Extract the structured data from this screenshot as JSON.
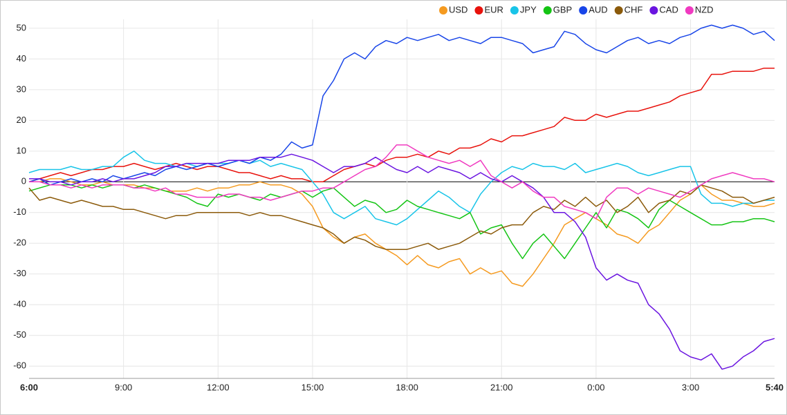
{
  "chart_data": {
    "type": "line",
    "categories": [
      "6:00",
      null,
      null,
      null,
      null,
      null,
      null,
      null,
      null,
      "9:00",
      null,
      null,
      null,
      null,
      null,
      null,
      null,
      null,
      "12:00",
      null,
      null,
      null,
      null,
      null,
      null,
      null,
      null,
      "15:00",
      null,
      null,
      null,
      null,
      null,
      null,
      null,
      null,
      "18:00",
      null,
      null,
      null,
      null,
      null,
      null,
      null,
      null,
      "21:00",
      null,
      null,
      null,
      null,
      null,
      null,
      null,
      null,
      "0:00",
      null,
      null,
      null,
      null,
      null,
      null,
      null,
      null,
      "3:00",
      null,
      null,
      null,
      null,
      null,
      null,
      null,
      "5:40"
    ],
    "ylim": [
      -64,
      52
    ],
    "yticks": [
      -60,
      -50,
      -40,
      -30,
      -20,
      -10,
      0,
      10,
      20,
      30,
      40,
      50
    ],
    "grid": true,
    "legend": "top-right",
    "series": [
      {
        "name": "USD",
        "color": "#f59a1f",
        "values": [
          0,
          0,
          1,
          1,
          0,
          -1,
          -1,
          0,
          -1,
          -1,
          -1,
          -2,
          -2,
          -3,
          -3,
          -3,
          -2,
          -3,
          -2,
          -2,
          -1,
          -1,
          0,
          -1,
          -1,
          -2,
          -4,
          -8,
          -15,
          -18,
          -20,
          -18,
          -17,
          -20,
          -22,
          -24,
          -27,
          -24,
          -27,
          -28,
          -26,
          -25,
          -30,
          -28,
          -30,
          -29,
          -33,
          -34,
          -30,
          -25,
          -20,
          -14,
          -12,
          -10,
          -12,
          -14,
          -17,
          -18,
          -20,
          -16,
          -14,
          -10,
          -6,
          -4,
          -1,
          -4,
          -6,
          -6,
          -7,
          -8,
          -8,
          -7
        ]
      },
      {
        "name": "EUR",
        "color": "#e8120c",
        "values": [
          0,
          1,
          2,
          3,
          2,
          3,
          4,
          4,
          5,
          5,
          6,
          5,
          4,
          5,
          6,
          5,
          4,
          5,
          5,
          4,
          3,
          3,
          2,
          1,
          2,
          1,
          1,
          0,
          0,
          2,
          4,
          5,
          6,
          5,
          7,
          8,
          8,
          9,
          8,
          10,
          9,
          11,
          11,
          12,
          14,
          13,
          15,
          15,
          16,
          17,
          18,
          21,
          20,
          20,
          22,
          21,
          22,
          23,
          23,
          24,
          25,
          26,
          28,
          29,
          30,
          35,
          35,
          36,
          36,
          36,
          37,
          37
        ]
      },
      {
        "name": "JPY",
        "color": "#18c4e8",
        "values": [
          3,
          4,
          4,
          4,
          5,
          4,
          4,
          5,
          5,
          8,
          10,
          7,
          6,
          6,
          5,
          6,
          5,
          6,
          6,
          6,
          7,
          6,
          7,
          5,
          6,
          5,
          4,
          0,
          -4,
          -10,
          -12,
          -10,
          -8,
          -12,
          -13,
          -14,
          -12,
          -9,
          -6,
          -3,
          -5,
          -8,
          -10,
          -4,
          0,
          3,
          5,
          4,
          6,
          5,
          5,
          4,
          6,
          3,
          4,
          5,
          6,
          5,
          3,
          2,
          3,
          4,
          5,
          5,
          -4,
          -7,
          -7,
          -8,
          -7,
          -7,
          -6,
          -6
        ]
      },
      {
        "name": "GBP",
        "color": "#14c414",
        "values": [
          -3,
          -2,
          -1,
          -1,
          -1,
          -2,
          -1,
          -2,
          -1,
          -1,
          -2,
          -1,
          -2,
          -3,
          -4,
          -5,
          -7,
          -8,
          -4,
          -5,
          -4,
          -5,
          -6,
          -4,
          -5,
          -4,
          -3,
          -5,
          -3,
          -2,
          -5,
          -8,
          -6,
          -7,
          -10,
          -9,
          -6,
          -8,
          -9,
          -10,
          -11,
          -12,
          -10,
          -17,
          -15,
          -14,
          -20,
          -25,
          -20,
          -17,
          -21,
          -25,
          -20,
          -15,
          -10,
          -15,
          -9,
          -10,
          -12,
          -15,
          -9,
          -6,
          -8,
          -10,
          -12,
          -14,
          -14,
          -13,
          -13,
          -12,
          -12,
          -13
        ]
      },
      {
        "name": "AUD",
        "color": "#1845e8",
        "values": [
          0,
          1,
          -1,
          0,
          1,
          0,
          1,
          0,
          2,
          1,
          2,
          3,
          2,
          4,
          5,
          4,
          5,
          6,
          5,
          6,
          7,
          6,
          8,
          7,
          9,
          13,
          11,
          12,
          28,
          33,
          40,
          42,
          40,
          44,
          46,
          45,
          47,
          46,
          47,
          48,
          46,
          47,
          46,
          45,
          47,
          47,
          46,
          45,
          42,
          43,
          44,
          49,
          48,
          45,
          43,
          42,
          44,
          46,
          47,
          45,
          46,
          45,
          47,
          48,
          50,
          51,
          50,
          51,
          50,
          48,
          49,
          46
        ]
      },
      {
        "name": "CHF",
        "color": "#8b5a0a",
        "values": [
          -2,
          -6,
          -5,
          -6,
          -7,
          -6,
          -7,
          -8,
          -8,
          -9,
          -9,
          -10,
          -11,
          -12,
          -11,
          -11,
          -10,
          -10,
          -10,
          -10,
          -10,
          -11,
          -10,
          -11,
          -11,
          -12,
          -13,
          -14,
          -15,
          -17,
          -20,
          -18,
          -19,
          -21,
          -22,
          -22,
          -22,
          -21,
          -20,
          -22,
          -21,
          -20,
          -18,
          -16,
          -17,
          -15,
          -14,
          -14,
          -10,
          -8,
          -9,
          -6,
          -8,
          -5,
          -8,
          -6,
          -10,
          -8,
          -5,
          -10,
          -7,
          -6,
          -3,
          -4,
          -1,
          -2,
          -3,
          -5,
          -5,
          -7,
          -6,
          -5
        ]
      },
      {
        "name": "CAD",
        "color": "#6a14e0",
        "values": [
          1,
          1,
          0,
          0,
          -1,
          0,
          0,
          1,
          0,
          1,
          1,
          2,
          3,
          5,
          5,
          6,
          6,
          6,
          6,
          7,
          7,
          7,
          8,
          8,
          8,
          9,
          8,
          7,
          5,
          3,
          5,
          5,
          6,
          8,
          6,
          4,
          3,
          5,
          3,
          5,
          4,
          3,
          1,
          3,
          1,
          0,
          2,
          0,
          -2,
          -5,
          -10,
          -10,
          -13,
          -18,
          -28,
          -32,
          -30,
          -32,
          -33,
          -40,
          -43,
          -48,
          -55,
          -57,
          -58,
          -56,
          -61,
          -60,
          -57,
          -55,
          -52,
          -51
        ]
      },
      {
        "name": "NZD",
        "color": "#f03ac0",
        "values": [
          0,
          0,
          -1,
          -1,
          -2,
          -1,
          -2,
          -1,
          -1,
          -1,
          -2,
          -2,
          -3,
          -2,
          -4,
          -4,
          -5,
          -5,
          -5,
          -4,
          -4,
          -5,
          -5,
          -6,
          -5,
          -4,
          -3,
          -3,
          -2,
          -2,
          0,
          2,
          4,
          5,
          8,
          12,
          12,
          10,
          8,
          7,
          6,
          7,
          5,
          7,
          2,
          0,
          -2,
          0,
          -3,
          -5,
          -5,
          -8,
          -9,
          -10,
          -12,
          -5,
          -2,
          -2,
          -4,
          -2,
          -3,
          -4,
          -5,
          -3,
          -1,
          1,
          2,
          3,
          2,
          1,
          1,
          0
        ]
      }
    ]
  }
}
